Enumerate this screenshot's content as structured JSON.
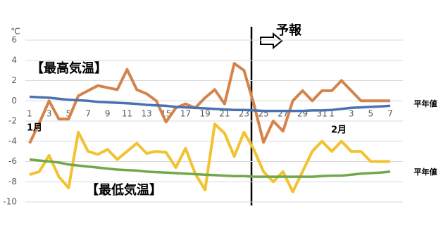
{
  "chart_data": {
    "type": "line",
    "y_unit": "℃",
    "categories": [
      "1",
      null,
      "3",
      null,
      "5",
      null,
      "7",
      null,
      "9",
      null,
      "11",
      null,
      "13",
      null,
      "15",
      null,
      "17",
      null,
      "19",
      null,
      "21",
      null,
      "23",
      null,
      "25",
      null,
      "27",
      null,
      "29",
      null,
      "31",
      "1",
      null,
      "3",
      null,
      "5",
      null,
      "7"
    ],
    "annotations": [
      "1月",
      "2月",
      "予報"
    ],
    "series": [
      {
        "name": "【最高気温】",
        "color": "#d4844b",
        "values": [
          -4.2,
          -2.2,
          0,
          -1.8,
          -1.8,
          0.5,
          1,
          1.5,
          1.3,
          1.1,
          3.1,
          1.1,
          0.7,
          0,
          -2.1,
          -0.7,
          -0.3,
          -0.7,
          0.3,
          1.1,
          -0.3,
          3.7,
          3,
          -0.3,
          -4.1,
          -2,
          -3,
          0,
          1,
          0,
          1,
          1,
          2,
          1,
          0,
          0,
          0,
          0
        ]
      },
      {
        "name": "【最低気温】",
        "color": "#f2c230",
        "values": [
          -7.3,
          -7,
          -5.4,
          -7.5,
          -8.6,
          -3.1,
          -5,
          -5.3,
          -4.8,
          -5.8,
          -5,
          -4.2,
          -5.2,
          -5,
          -5.1,
          -6.6,
          -4.7,
          -7.2,
          -8.8,
          -2.3,
          -3.2,
          -5.5,
          -3.1,
          -4.8,
          -7,
          -8,
          -7,
          -9,
          -7,
          -5,
          -4,
          -5,
          -4,
          -5,
          -5,
          -6,
          -6,
          -6
        ]
      },
      {
        "name": "平年値",
        "color": "#4a72b2",
        "values": [
          0.4,
          0.35,
          0.3,
          0.2,
          0.1,
          0.05,
          0,
          -0.1,
          -0.15,
          -0.2,
          -0.25,
          -0.3,
          -0.4,
          -0.45,
          -0.5,
          -0.6,
          -0.65,
          -0.7,
          -0.75,
          -0.8,
          -0.85,
          -0.9,
          -0.9,
          -0.95,
          -1,
          -1,
          -1,
          -1,
          -1,
          -0.95,
          -0.95,
          -0.9,
          -0.8,
          -0.7,
          -0.65,
          -0.6,
          -0.55,
          -0.5
        ]
      },
      {
        "name": "平年値",
        "color": "#70a84a",
        "values": [
          -5.8,
          -5.9,
          -6,
          -6.1,
          -6.3,
          -6.4,
          -6.5,
          -6.6,
          -6.7,
          -6.8,
          -6.85,
          -6.9,
          -7,
          -7.05,
          -7.1,
          -7.15,
          -7.2,
          -7.25,
          -7.3,
          -7.35,
          -7.4,
          -7.45,
          -7.45,
          -7.5,
          -7.5,
          -7.5,
          -7.5,
          -7.5,
          -7.5,
          -7.5,
          -7.45,
          -7.4,
          -7.4,
          -7.3,
          -7.2,
          -7.15,
          -7.1,
          -7
        ]
      }
    ],
    "ylim": [
      -10,
      6
    ],
    "yticks": [
      -10,
      -8,
      -6,
      -4,
      -2,
      0,
      2,
      4,
      6
    ],
    "grid": true
  }
}
